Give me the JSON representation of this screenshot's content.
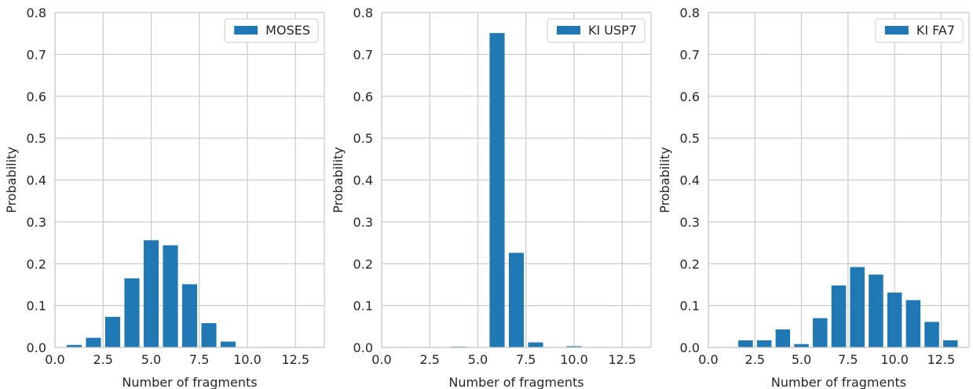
{
  "chart_data": [
    {
      "type": "bar",
      "series": [
        {
          "name": "MOSES",
          "color": "#1f77b4",
          "x": [
            1,
            2,
            3,
            4,
            5,
            6,
            7,
            8,
            9,
            10,
            11,
            12,
            13
          ],
          "values": [
            0.006,
            0.023,
            0.073,
            0.165,
            0.256,
            0.244,
            0.151,
            0.058,
            0.014,
            0.001,
            0.0,
            0.0,
            0.0
          ]
        }
      ],
      "xlabel": "Number of fragments",
      "ylabel": "Probability",
      "xlim": [
        0.0,
        14.0
      ],
      "ylim": [
        0.0,
        0.8
      ],
      "xticks": [
        "0.0",
        "2.5",
        "5.0",
        "7.5",
        "10.0",
        "12.5"
      ],
      "yticks": [
        "0.0",
        "0.1",
        "0.2",
        "0.3",
        "0.4",
        "0.5",
        "0.6",
        "0.7",
        "0.8"
      ],
      "legend": "top-right",
      "grid": true
    },
    {
      "type": "bar",
      "series": [
        {
          "name": "KI USP7",
          "color": "#1f77b4",
          "x": [
            4,
            6,
            7,
            8,
            10
          ],
          "values": [
            0.002,
            0.751,
            0.226,
            0.012,
            0.003
          ]
        }
      ],
      "xlabel": "Number of fragments",
      "ylabel": "Probability",
      "xlim": [
        0.0,
        14.0
      ],
      "ylim": [
        0.0,
        0.8
      ],
      "xticks": [
        "0.0",
        "2.5",
        "5.0",
        "7.5",
        "10.0",
        "12.5"
      ],
      "yticks": [
        "0.0",
        "0.1",
        "0.2",
        "0.3",
        "0.4",
        "0.5",
        "0.6",
        "0.7",
        "0.8"
      ],
      "legend": "top-right",
      "grid": true
    },
    {
      "type": "bar",
      "series": [
        {
          "name": "KI FA7",
          "color": "#1f77b4",
          "x": [
            2,
            3,
            4,
            5,
            6,
            7,
            8,
            9,
            10,
            11,
            12,
            13
          ],
          "values": [
            0.017,
            0.017,
            0.043,
            0.008,
            0.07,
            0.148,
            0.192,
            0.174,
            0.131,
            0.113,
            0.061,
            0.017
          ]
        }
      ],
      "xlabel": "Number of fragments",
      "ylabel": "Probability",
      "xlim": [
        0.0,
        14.0
      ],
      "ylim": [
        0.0,
        0.8
      ],
      "xticks": [
        "0.0",
        "2.5",
        "5.0",
        "7.5",
        "10.0",
        "12.5"
      ],
      "yticks": [
        "0.0",
        "0.1",
        "0.2",
        "0.3",
        "0.4",
        "0.5",
        "0.6",
        "0.7",
        "0.8"
      ],
      "legend": "top-right",
      "grid": true
    }
  ]
}
